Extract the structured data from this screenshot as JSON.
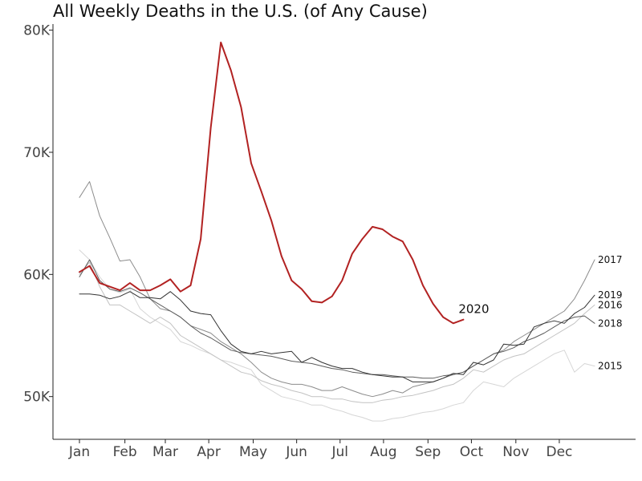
{
  "chart_data": {
    "type": "line",
    "title": "All Weekly Deaths in the U.S. (of Any Cause)",
    "xlabel": "",
    "ylabel": "",
    "x_unit": "week of year",
    "xlim": [
      1,
      52
    ],
    "ylim": [
      46500,
      80500
    ],
    "yticks": [
      {
        "value": 50000,
        "label": "50K"
      },
      {
        "value": 60000,
        "label": "60K"
      },
      {
        "value": 70000,
        "label": "70K"
      },
      {
        "value": 80000,
        "label": "80K"
      }
    ],
    "xticks": [
      {
        "value": 1,
        "label": "Jan"
      },
      {
        "value": 5.5,
        "label": "Feb"
      },
      {
        "value": 9.5,
        "label": "Mar"
      },
      {
        "value": 13.8,
        "label": "Apr"
      },
      {
        "value": 18.2,
        "label": "May"
      },
      {
        "value": 22.5,
        "label": "Jun"
      },
      {
        "value": 26.8,
        "label": "Jul"
      },
      {
        "value": 31.1,
        "label": "Aug"
      },
      {
        "value": 35.5,
        "label": "Sep"
      },
      {
        "value": 39.8,
        "label": "Oct"
      },
      {
        "value": 44.2,
        "label": "Nov"
      },
      {
        "value": 48.5,
        "label": "Dec"
      }
    ],
    "grid": false,
    "legend": "none",
    "series": [
      {
        "name": "2015",
        "color": "#d6d6d6",
        "width": 1,
        "values": [
          62000,
          61200,
          59800,
          58800,
          58500,
          58800,
          57200,
          56500,
          56000,
          55500,
          54500,
          54200,
          53800,
          53500,
          53000,
          52800,
          52500,
          52200,
          51000,
          50500,
          50000,
          49800,
          49600,
          49300,
          49300,
          49000,
          48800,
          48500,
          48300,
          48000,
          48000,
          48200,
          48300,
          48500,
          48700,
          48800,
          49000,
          49300,
          49500,
          50500,
          51200,
          51000,
          50800,
          51500,
          52000,
          52500,
          53000,
          53500,
          53800,
          52000,
          52700,
          52500
        ]
      },
      {
        "name": "2016",
        "color": "#c2c2c2",
        "width": 1,
        "values": [
          60000,
          61000,
          59000,
          57500,
          57500,
          57000,
          56500,
          56000,
          56500,
          56000,
          55000,
          54500,
          54000,
          53500,
          53000,
          52500,
          52000,
          51800,
          51300,
          51000,
          50800,
          50500,
          50300,
          50000,
          50000,
          49800,
          49800,
          49600,
          49500,
          49500,
          49700,
          49800,
          50000,
          50100,
          50300,
          50500,
          50800,
          51000,
          51500,
          52200,
          52000,
          52500,
          53000,
          53300,
          53500,
          54000,
          54500,
          55000,
          55500,
          56000,
          56800,
          57500
        ]
      },
      {
        "name": "2017",
        "color": "#8c8c8c",
        "width": 1,
        "values": [
          66300,
          67600,
          64800,
          63000,
          61100,
          61200,
          59800,
          58000,
          57200,
          57000,
          56500,
          55800,
          55500,
          55200,
          54500,
          54000,
          53500,
          52800,
          52000,
          51500,
          51200,
          51000,
          51000,
          50800,
          50500,
          50500,
          50800,
          50500,
          50200,
          50000,
          50200,
          50500,
          50300,
          50800,
          51000,
          51200,
          51500,
          51800,
          52000,
          52500,
          53000,
          53500,
          53800,
          54500,
          55000,
          55500,
          56000,
          56500,
          57000,
          58000,
          59500,
          61200
        ]
      },
      {
        "name": "2018",
        "color": "#5c5c5c",
        "width": 1,
        "values": [
          59800,
          61200,
          59500,
          58800,
          58600,
          58900,
          58500,
          58000,
          57500,
          57000,
          56500,
          55800,
          55200,
          54800,
          54300,
          53800,
          53600,
          53500,
          53400,
          53300,
          53100,
          52900,
          52800,
          52700,
          52500,
          52300,
          52200,
          52000,
          51900,
          51800,
          51800,
          51700,
          51600,
          51600,
          51500,
          51500,
          51700,
          51800,
          52000,
          52500,
          53000,
          53500,
          53700,
          54000,
          54500,
          54800,
          55200,
          55700,
          56200,
          56500,
          56600,
          56000
        ]
      },
      {
        "name": "2019",
        "color": "#333333",
        "width": 1,
        "values": [
          58400,
          58400,
          58300,
          58000,
          58200,
          58600,
          58100,
          58100,
          58000,
          58600,
          57900,
          57000,
          56800,
          56700,
          55400,
          54300,
          53700,
          53500,
          53700,
          53500,
          53600,
          53700,
          52800,
          53200,
          52800,
          52500,
          52300,
          52300,
          52000,
          51800,
          51700,
          51600,
          51600,
          51200,
          51200,
          51200,
          51500,
          51900,
          51800,
          52800,
          52600,
          53000,
          54300,
          54200,
          54300,
          55700,
          56000,
          56200,
          56000,
          56800,
          57300,
          58300
        ]
      },
      {
        "name": "2020",
        "color": "#b22222",
        "width": 2,
        "highlight": true,
        "values": [
          60200,
          60700,
          59300,
          59000,
          58700,
          59300,
          58700,
          58700,
          59100,
          59600,
          58600,
          59100,
          62900,
          72000,
          79000,
          76700,
          73700,
          69100,
          66800,
          64400,
          61500,
          59500,
          58800,
          57800,
          57700,
          58200,
          59500,
          61700,
          62900,
          63900,
          63700,
          63100,
          62700,
          61200,
          59100,
          57600,
          56500,
          56000,
          56300
        ]
      }
    ]
  }
}
